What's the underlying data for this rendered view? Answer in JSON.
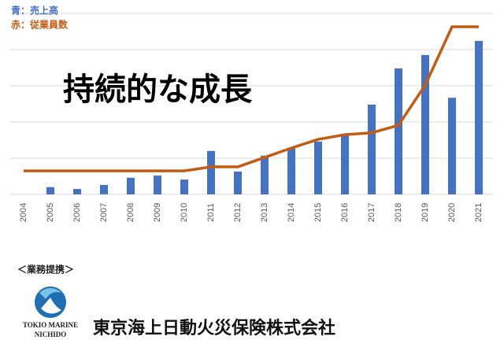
{
  "chart_data": {
    "type": "bar",
    "title": "持続的な成長",
    "categories": [
      "2004",
      "2005",
      "2006",
      "2007",
      "2008",
      "2009",
      "2010",
      "2011",
      "2012",
      "2013",
      "2014",
      "2015",
      "2016",
      "2017",
      "2018",
      "2019",
      "2020",
      "2021"
    ],
    "series": [
      {
        "name": "青：売上高",
        "type": "bar",
        "color": "#4472c4",
        "values": [
          0,
          0.2,
          0.15,
          0.26,
          0.46,
          0.52,
          0.41,
          1.2,
          0.63,
          1.07,
          1.28,
          1.46,
          1.63,
          2.48,
          3.48,
          3.85,
          2.67,
          4.24
        ]
      },
      {
        "name": "赤：従業員数",
        "type": "line",
        "color": "#c55a11",
        "values": [
          0.65,
          0.65,
          0.65,
          0.65,
          0.65,
          0.65,
          0.65,
          0.76,
          0.76,
          1.02,
          1.28,
          1.52,
          1.65,
          1.7,
          1.91,
          3.02,
          4.63,
          4.63
        ]
      }
    ],
    "ylim": [
      0,
      5
    ],
    "yticks": [
      0,
      1,
      2,
      3,
      4,
      5
    ],
    "grid": true
  },
  "footer": {
    "section_label": "＜業務提携＞",
    "logo_text_1": "TOKIO MARINE",
    "logo_text_2": "NICHIDO",
    "company": "東京海上日動火災保険株式会社"
  }
}
